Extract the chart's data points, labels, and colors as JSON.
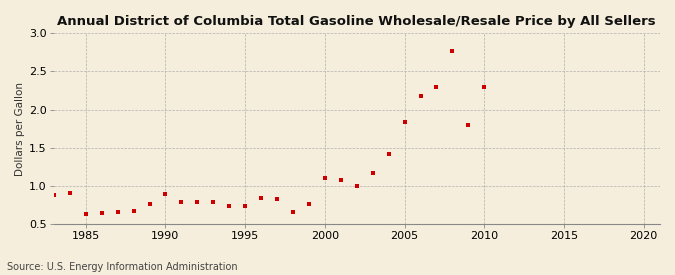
{
  "title": "Annual District of Columbia Total Gasoline Wholesale/Resale Price by All Sellers",
  "ylabel": "Dollars per Gallon",
  "source": "Source: U.S. Energy Information Administration",
  "background_color": "#f5eedc",
  "marker_color": "#cc0000",
  "xlim": [
    1983,
    2021
  ],
  "ylim": [
    0.5,
    3.0
  ],
  "xticks": [
    1985,
    1990,
    1995,
    2000,
    2005,
    2010,
    2015,
    2020
  ],
  "yticks": [
    0.5,
    1.0,
    1.5,
    2.0,
    2.5,
    3.0
  ],
  "years": [
    1983,
    1984,
    1985,
    1986,
    1987,
    1988,
    1989,
    1990,
    1991,
    1992,
    1993,
    1994,
    1995,
    1996,
    1997,
    1998,
    1999,
    2000,
    2001,
    2002,
    2003,
    2004,
    2005,
    2006,
    2007,
    2008,
    2009,
    2010
  ],
  "values": [
    0.88,
    0.9,
    0.63,
    0.64,
    0.65,
    0.67,
    0.76,
    0.89,
    0.78,
    0.79,
    0.79,
    0.74,
    0.74,
    0.84,
    0.83,
    0.65,
    0.76,
    1.1,
    1.08,
    1.0,
    1.17,
    1.42,
    1.83,
    2.18,
    2.3,
    2.77,
    1.8,
    2.3
  ],
  "title_fontsize": 9.5,
  "tick_fontsize": 8,
  "ylabel_fontsize": 7.5,
  "source_fontsize": 7
}
